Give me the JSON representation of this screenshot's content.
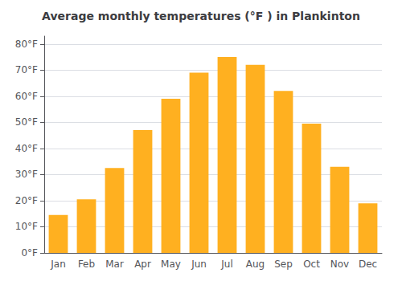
{
  "chart_data": {
    "type": "bar",
    "title": "Average monthly temperatures (°F ) in Plankinton",
    "categories": [
      "Jan",
      "Feb",
      "Mar",
      "Apr",
      "May",
      "Jun",
      "Jul",
      "Aug",
      "Sep",
      "Oct",
      "Nov",
      "Dec"
    ],
    "values": [
      14.5,
      20.5,
      32.5,
      47,
      59,
      69,
      75,
      72,
      62,
      49.5,
      33,
      19
    ],
    "color": "#FFB020",
    "ylim": [
      0,
      83
    ],
    "yticks": [
      {
        "value": 0,
        "label": "0°F"
      },
      {
        "value": 10,
        "label": "10°F"
      },
      {
        "value": 20,
        "label": "20°F"
      },
      {
        "value": 30,
        "label": "30°F"
      },
      {
        "value": 40,
        "label": "40°F"
      },
      {
        "value": 50,
        "label": "50°F"
      },
      {
        "value": 60,
        "label": "60°F"
      },
      {
        "value": 70,
        "label": "70°F"
      },
      {
        "value": 80,
        "label": "80°F"
      }
    ],
    "grid": true
  }
}
